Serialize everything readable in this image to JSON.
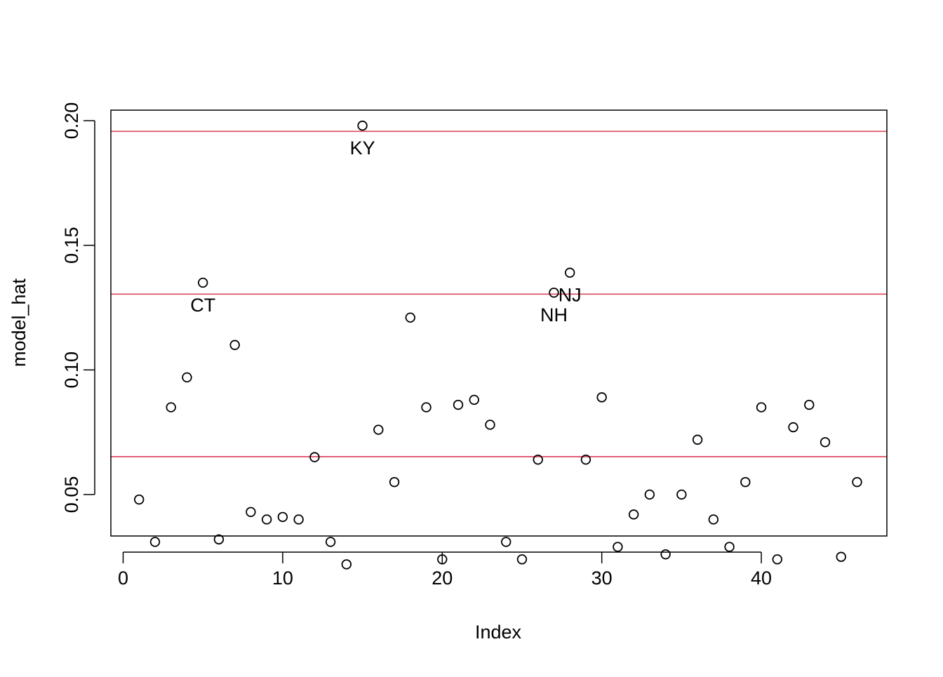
{
  "chart_data": {
    "type": "scatter",
    "xlabel": "Index",
    "ylabel": "model_hat",
    "xlim": [
      0,
      46
    ],
    "ylim": [
      0.02,
      0.2
    ],
    "x_ticks": [
      0,
      10,
      20,
      30,
      40
    ],
    "x_tick_labels": [
      "0",
      "10",
      "20",
      "30",
      "40"
    ],
    "y_ticks": [
      0.05,
      0.1,
      0.15,
      0.2
    ],
    "y_tick_labels": [
      "0.05",
      "0.10",
      "0.15",
      "0.20"
    ],
    "grid": false,
    "series": [
      {
        "x": [
          1,
          2,
          3,
          4,
          5,
          6,
          7,
          8,
          9,
          10,
          11,
          12,
          13,
          14,
          15,
          16,
          17,
          18,
          19,
          20,
          21,
          22,
          23,
          24,
          25,
          26,
          27,
          28,
          29,
          30,
          31,
          32,
          33,
          34,
          35,
          36,
          37,
          38,
          39,
          40,
          41,
          42,
          43,
          44,
          45,
          46
        ],
        "values": [
          0.048,
          0.031,
          0.085,
          0.097,
          0.135,
          0.032,
          0.11,
          0.043,
          0.04,
          0.041,
          0.04,
          0.065,
          0.031,
          0.022,
          0.198,
          0.076,
          0.055,
          0.121,
          0.085,
          0.024,
          0.086,
          0.088,
          0.078,
          0.031,
          0.024,
          0.064,
          0.131,
          0.139,
          0.064,
          0.089,
          0.029,
          0.042,
          0.05,
          0.026,
          0.05,
          0.072,
          0.04,
          0.029,
          0.055,
          0.085,
          0.024,
          0.077,
          0.086,
          0.071,
          0.025,
          0.055
        ]
      }
    ],
    "reference_lines": [
      {
        "y": 0.0652,
        "color": "#DF536B"
      },
      {
        "y": 0.1304,
        "color": "#DF536B"
      },
      {
        "y": 0.1957,
        "color": "#DF536B"
      }
    ],
    "annotations": [
      {
        "text": "CT",
        "x": 5,
        "y": 0.135
      },
      {
        "text": "KY",
        "x": 15,
        "y": 0.198
      },
      {
        "text": "NH",
        "x": 27,
        "y": 0.131
      },
      {
        "text": "NJ",
        "x": 28,
        "y": 0.139
      }
    ]
  }
}
